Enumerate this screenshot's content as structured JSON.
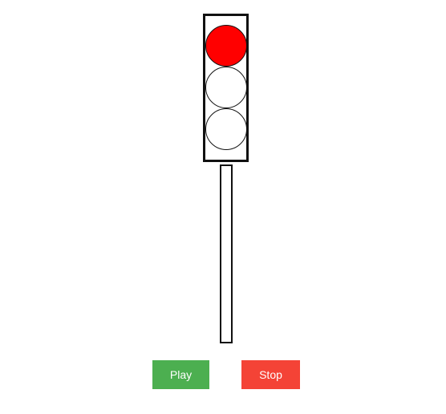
{
  "traffic_light": {
    "lamps": [
      {
        "name": "red",
        "color": "#ff0000",
        "lit": true
      },
      {
        "name": "yellow",
        "color": "#ffffff",
        "lit": false
      },
      {
        "name": "green",
        "color": "#ffffff",
        "lit": false
      }
    ],
    "housing_color": "#111111",
    "pole_color": "#ffffff"
  },
  "controls": {
    "play_label": "Play",
    "play_color": "#4caf50",
    "stop_label": "Stop",
    "stop_color": "#f44336"
  }
}
